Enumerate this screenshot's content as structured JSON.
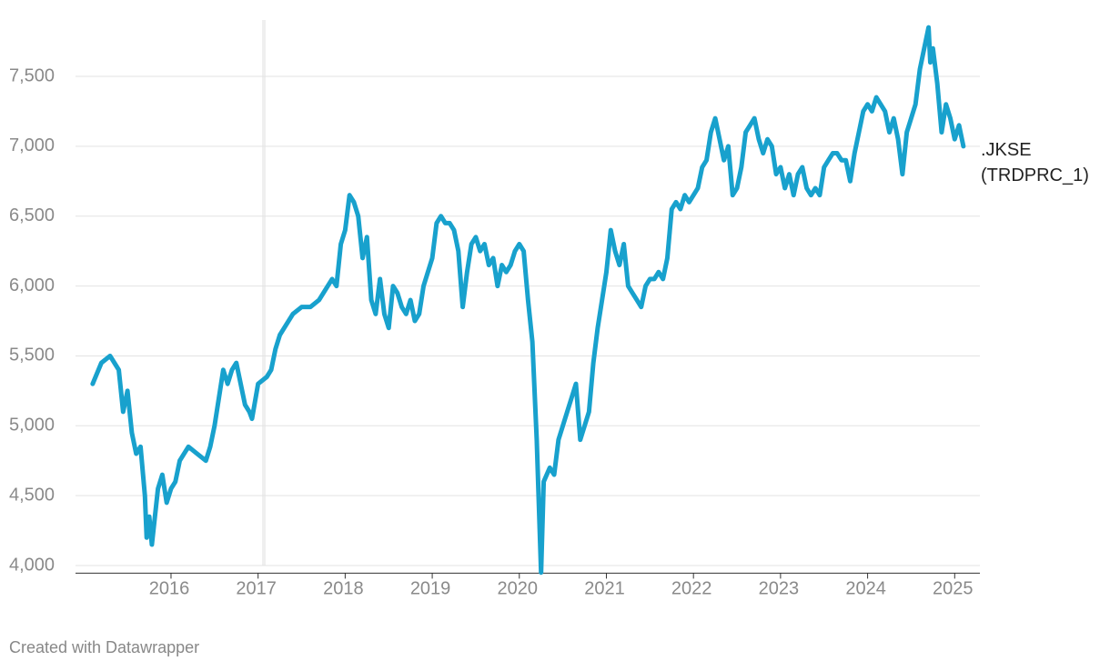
{
  "chart_data": {
    "type": "line",
    "credit": "Created with Datawrapper",
    "x": [
      2015.1,
      2015.2,
      2015.3,
      2015.35,
      2015.4,
      2015.45,
      2015.5,
      2015.55,
      2015.6,
      2015.65,
      2015.7,
      2015.72,
      2015.75,
      2015.78,
      2015.85,
      2015.9,
      2015.95,
      2016.0,
      2016.05,
      2016.1,
      2016.2,
      2016.3,
      2016.4,
      2016.45,
      2016.5,
      2016.55,
      2016.6,
      2016.65,
      2016.7,
      2016.75,
      2016.8,
      2016.85,
      2016.9,
      2016.93,
      2017.0,
      2017.1,
      2017.15,
      2017.2,
      2017.25,
      2017.3,
      2017.4,
      2017.5,
      2017.6,
      2017.7,
      2017.8,
      2017.85,
      2017.9,
      2017.95,
      2018.0,
      2018.05,
      2018.1,
      2018.15,
      2018.2,
      2018.25,
      2018.3,
      2018.35,
      2018.4,
      2018.45,
      2018.5,
      2018.55,
      2018.6,
      2018.65,
      2018.7,
      2018.75,
      2018.8,
      2018.85,
      2018.9,
      2018.95,
      2019.0,
      2019.05,
      2019.1,
      2019.15,
      2019.2,
      2019.25,
      2019.3,
      2019.35,
      2019.4,
      2019.45,
      2019.5,
      2019.55,
      2019.6,
      2019.65,
      2019.7,
      2019.75,
      2019.8,
      2019.85,
      2019.9,
      2019.95,
      2020.0,
      2020.05,
      2020.1,
      2020.15,
      2020.2,
      2020.25,
      2020.28,
      2020.35,
      2020.4,
      2020.45,
      2020.5,
      2020.55,
      2020.6,
      2020.65,
      2020.7,
      2020.75,
      2020.8,
      2020.85,
      2020.9,
      2020.95,
      2021.0,
      2021.05,
      2021.1,
      2021.15,
      2021.2,
      2021.25,
      2021.3,
      2021.35,
      2021.4,
      2021.45,
      2021.5,
      2021.55,
      2021.6,
      2021.65,
      2021.7,
      2021.75,
      2021.8,
      2021.85,
      2021.9,
      2021.95,
      2022.0,
      2022.05,
      2022.1,
      2022.15,
      2022.2,
      2022.25,
      2022.3,
      2022.35,
      2022.4,
      2022.45,
      2022.5,
      2022.55,
      2022.6,
      2022.65,
      2022.7,
      2022.75,
      2022.8,
      2022.85,
      2022.9,
      2022.95,
      2023.0,
      2023.05,
      2023.1,
      2023.15,
      2023.2,
      2023.25,
      2023.3,
      2023.35,
      2023.4,
      2023.45,
      2023.5,
      2023.55,
      2023.6,
      2023.65,
      2023.7,
      2023.75,
      2023.8,
      2023.85,
      2023.9,
      2023.95,
      2024.0,
      2024.05,
      2024.1,
      2024.15,
      2024.2,
      2024.25,
      2024.3,
      2024.35,
      2024.4,
      2024.45,
      2024.5,
      2024.55,
      2024.6,
      2024.65,
      2024.7,
      2024.72,
      2024.75,
      2024.8,
      2024.85,
      2024.9,
      2024.95,
      2025.0,
      2025.05,
      2025.1
    ],
    "series": [
      {
        "name": ".JKSE (TRDPRC_1)",
        "color": "#18a1cd",
        "values": [
          5300,
          5450,
          5500,
          5450,
          5400,
          5100,
          5250,
          4950,
          4800,
          4850,
          4500,
          4200,
          4350,
          4150,
          4550,
          4650,
          4450,
          4550,
          4600,
          4750,
          4850,
          4800,
          4750,
          4850,
          5000,
          5200,
          5400,
          5300,
          5400,
          5450,
          5300,
          5150,
          5100,
          5050,
          5300,
          5350,
          5400,
          5550,
          5650,
          5700,
          5800,
          5850,
          5850,
          5900,
          6000,
          6050,
          6000,
          6300,
          6400,
          6650,
          6600,
          6500,
          6200,
          6350,
          5900,
          5800,
          6050,
          5800,
          5700,
          6000,
          5950,
          5850,
          5800,
          5900,
          5750,
          5800,
          6000,
          6100,
          6200,
          6450,
          6500,
          6450,
          6450,
          6400,
          6250,
          5850,
          6100,
          6300,
          6350,
          6250,
          6300,
          6150,
          6200,
          6000,
          6150,
          6100,
          6150,
          6250,
          6300,
          6250,
          5900,
          5600,
          4900,
          3950,
          4600,
          4700,
          4650,
          4900,
          5000,
          5100,
          5200,
          5300,
          4900,
          5000,
          5100,
          5450,
          5700,
          5900,
          6100,
          6400,
          6250,
          6150,
          6300,
          6000,
          5950,
          5900,
          5850,
          6000,
          6050,
          6050,
          6100,
          6050,
          6200,
          6550,
          6600,
          6550,
          6650,
          6600,
          6650,
          6700,
          6850,
          6900,
          7100,
          7200,
          7050,
          6900,
          7000,
          6650,
          6700,
          6850,
          7100,
          7150,
          7200,
          7050,
          6950,
          7050,
          7000,
          6800,
          6850,
          6700,
          6800,
          6650,
          6800,
          6850,
          6700,
          6650,
          6700,
          6650,
          6850,
          6900,
          6950,
          6950,
          6900,
          6900,
          6750,
          6950,
          7100,
          7250,
          7300,
          7250,
          7350,
          7300,
          7250,
          7100,
          7200,
          7050,
          6800,
          7100,
          7200,
          7300,
          7550,
          7700,
          7850,
          7600,
          7700,
          7450,
          7100,
          7300,
          7200,
          7050,
          7150,
          7000
        ]
      }
    ],
    "xlim": [
      2014.9,
      2025.3
    ],
    "xticks": [
      2016,
      2017,
      2018,
      2019,
      2020,
      2021,
      2022,
      2023,
      2024,
      2025
    ],
    "ylim": [
      3900,
      7900
    ],
    "yticks": [
      {
        "value": 4000,
        "label": "4,000"
      },
      {
        "value": 4500,
        "label": "4,500"
      },
      {
        "value": 5000,
        "label": "5,000"
      },
      {
        "value": 5500,
        "label": "5,500"
      },
      {
        "value": 6000,
        "label": "6,000"
      },
      {
        "value": 6500,
        "label": "6,500"
      },
      {
        "value": 7000,
        "label": "7,000"
      },
      {
        "value": 7500,
        "label": "7,500"
      }
    ],
    "grid": true
  }
}
